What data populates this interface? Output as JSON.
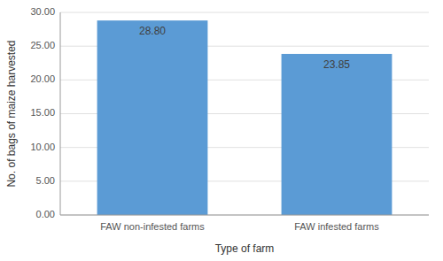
{
  "chart_data": {
    "type": "bar",
    "categories": [
      "FAW non-infested farms",
      "FAW infested farms"
    ],
    "values": [
      28.8,
      23.85
    ],
    "value_labels": [
      "28.80",
      "23.85"
    ],
    "data_labels": true,
    "color": "#5B9BD5",
    "xlabel": "Type of farm",
    "ylabel": "No. of bags of maize harvested",
    "ylim": [
      0,
      30
    ],
    "yticks": [
      {
        "value": 0,
        "label": "0.00"
      },
      {
        "value": 5,
        "label": "5.00"
      },
      {
        "value": 10,
        "label": "10.00"
      },
      {
        "value": 15,
        "label": "15.00"
      },
      {
        "value": 20,
        "label": "20.00"
      },
      {
        "value": 25,
        "label": "25.00"
      },
      {
        "value": 30,
        "label": "30.00"
      }
    ],
    "grid": true
  }
}
